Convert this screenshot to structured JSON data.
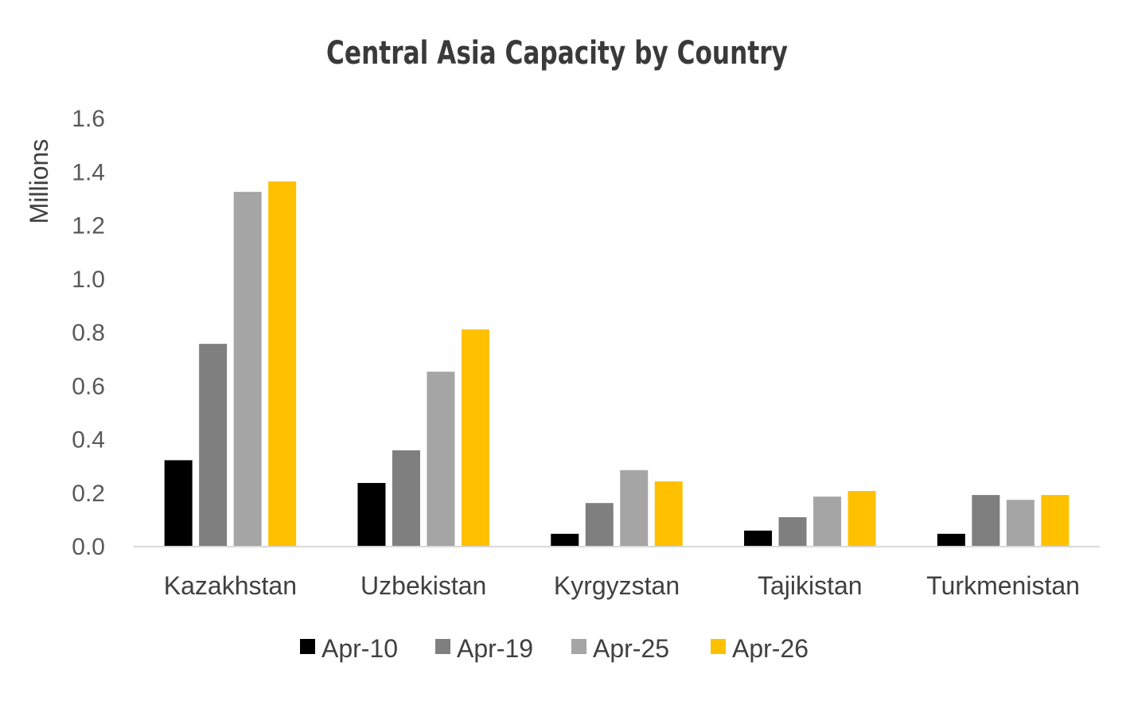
{
  "chart_data": {
    "type": "bar",
    "title": "Central Asia Capacity by Country",
    "xlabel": "",
    "ylabel": "Millions",
    "ylim": [
      0,
      1.6
    ],
    "yticks": [
      "0.0",
      "0.2",
      "0.4",
      "0.6",
      "0.8",
      "1.0",
      "1.2",
      "1.4",
      "1.6"
    ],
    "grid": false,
    "legend": "bottom",
    "categories": [
      "Kazakhstan",
      "Uzbekistan",
      "Kyrgyzstan",
      "Tajikistan",
      "Turkmenistan"
    ],
    "series": [
      {
        "name": "Apr-10",
        "color": "#000000",
        "values": [
          0.32,
          0.235,
          0.045,
          0.057,
          0.045
        ]
      },
      {
        "name": "Apr-19",
        "color": "#7f7f7f",
        "values": [
          0.755,
          0.357,
          0.16,
          0.107,
          0.19
        ]
      },
      {
        "name": "Apr-25",
        "color": "#a5a5a5",
        "values": [
          1.323,
          0.651,
          0.283,
          0.184,
          0.172
        ]
      },
      {
        "name": "Apr-26",
        "color": "#ffc000",
        "values": [
          1.362,
          0.809,
          0.241,
          0.205,
          0.19
        ]
      }
    ]
  }
}
